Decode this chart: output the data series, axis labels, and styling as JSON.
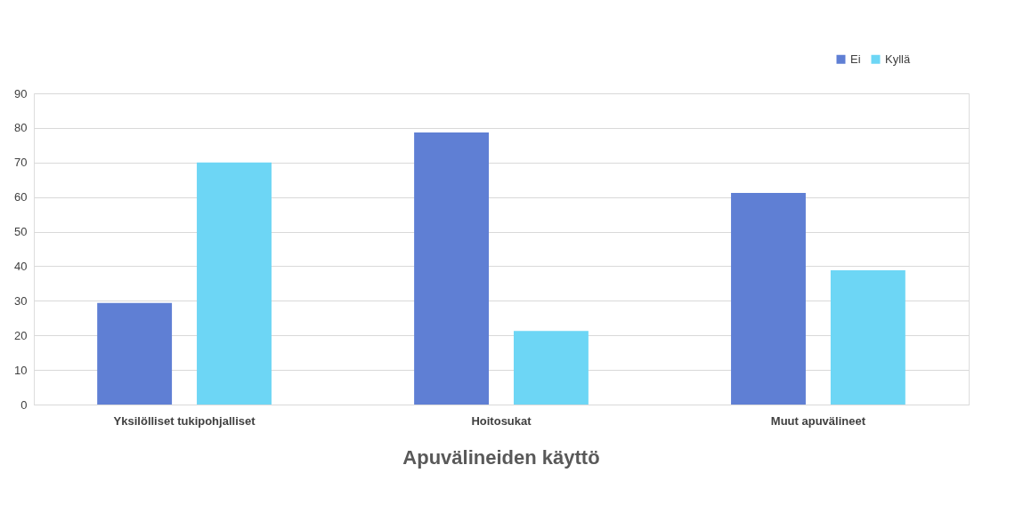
{
  "chart_data": {
    "type": "bar",
    "title": "Apuvälineiden käyttö",
    "categories": [
      "Yksilölliset tukipohjalliset",
      "Hoitosukat",
      "Muut apuvälineet"
    ],
    "series": [
      {
        "name": "Ei",
        "color": "#5f7fd4",
        "values": [
          29.4,
          78.7,
          61.2
        ]
      },
      {
        "name": "Kyllä",
        "color": "#6dd6f5",
        "values": [
          70.0,
          21.3,
          38.8
        ]
      }
    ],
    "ylim": [
      0,
      90
    ],
    "yticks": [
      0,
      10,
      20,
      30,
      40,
      50,
      60,
      70,
      80,
      90
    ],
    "grid": "y",
    "legend": "top right"
  }
}
